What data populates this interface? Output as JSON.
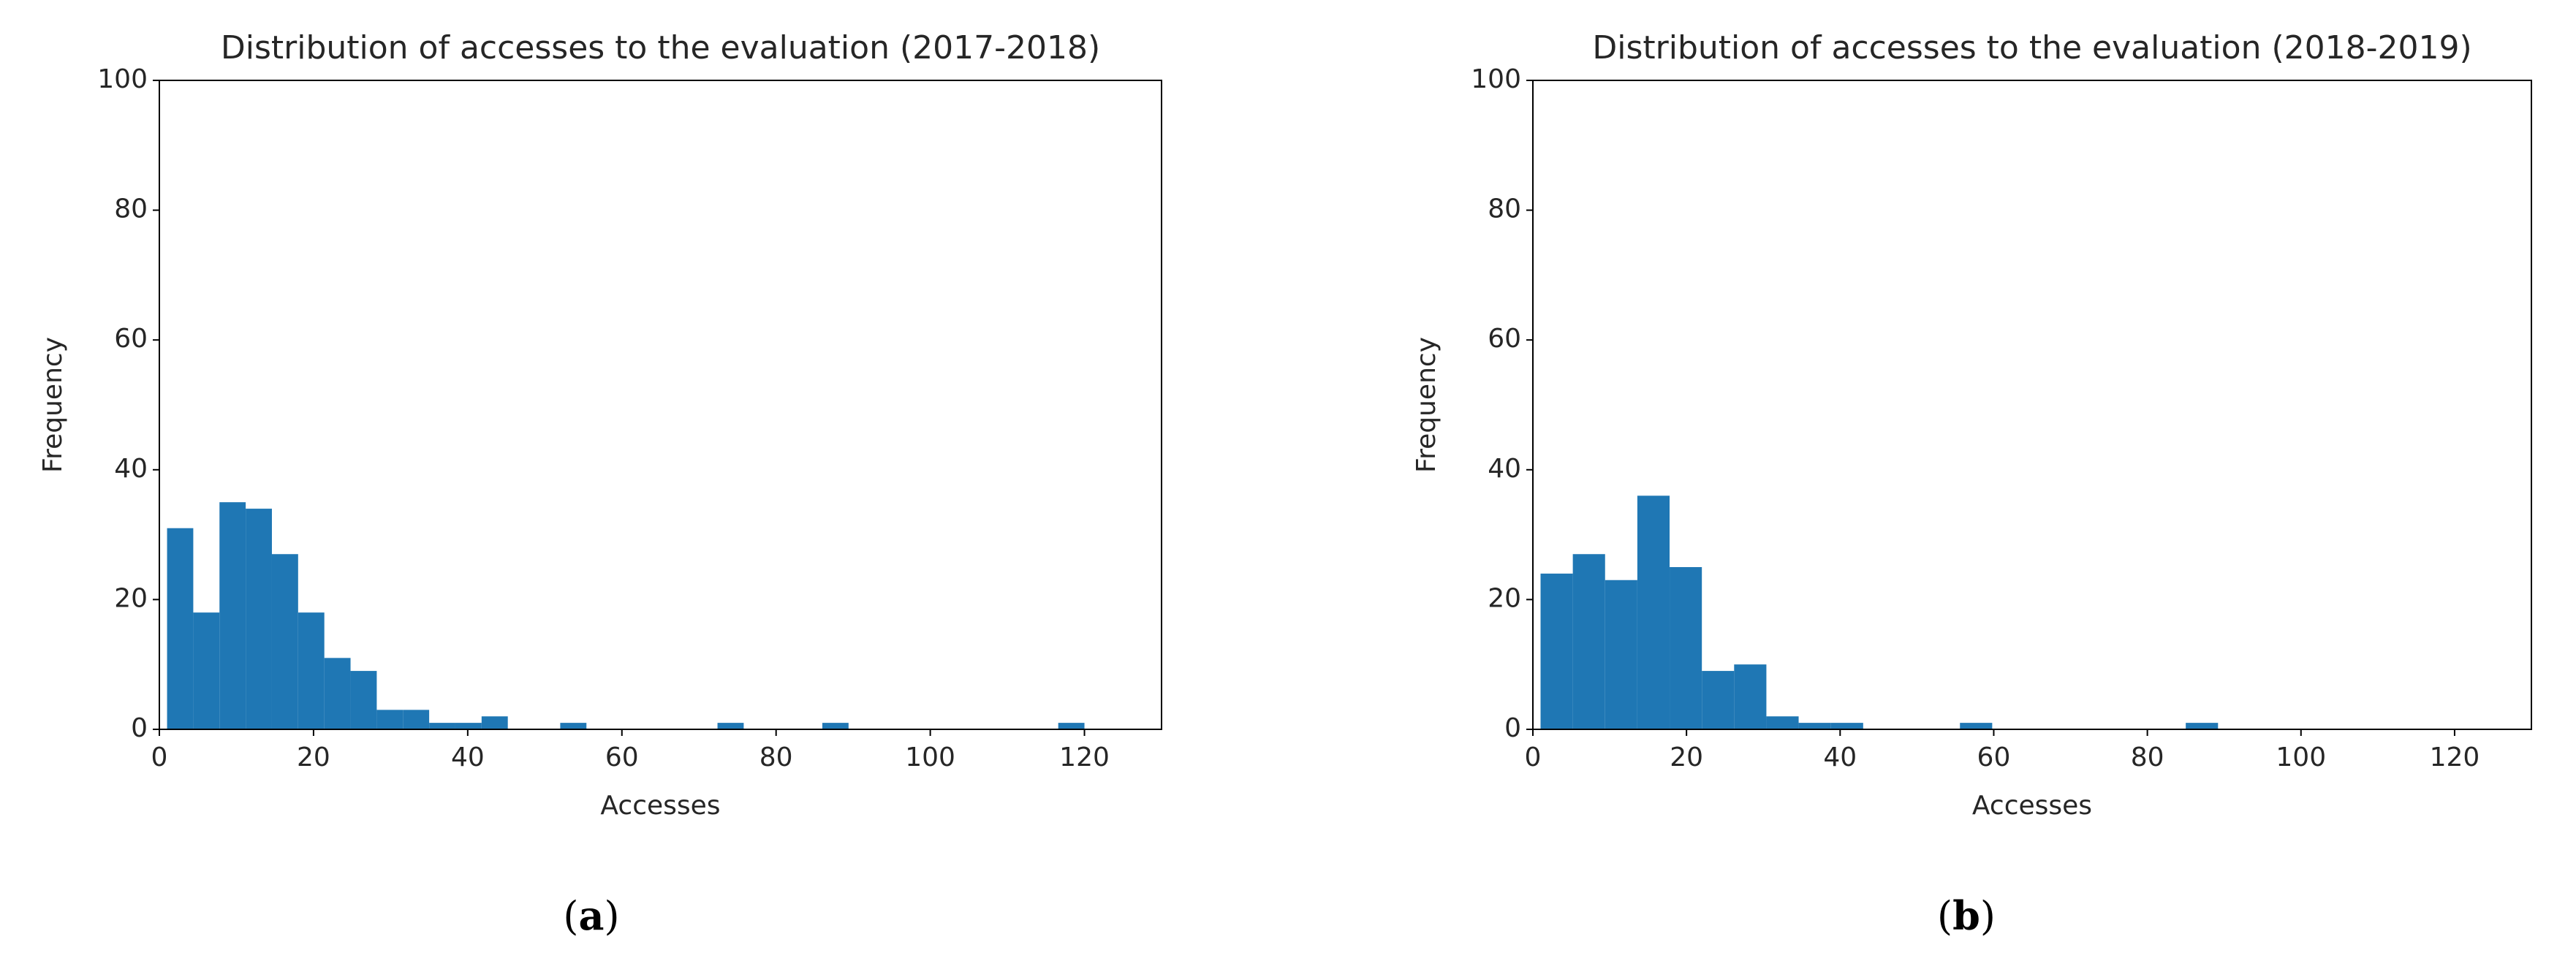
{
  "chart_data": [
    {
      "type": "histogram",
      "title": "Distribution of accesses to the evaluation (2017-2018)",
      "x_label": "Accesses",
      "y_label": "Frequency",
      "caption": [
        "(",
        "a",
        ")"
      ],
      "color": "#1f77b4",
      "bins": [
        1,
        4.4,
        7.8,
        11.2,
        14.6,
        18,
        21.4,
        24.8,
        28.2,
        31.6,
        35,
        38.4,
        41.8,
        45.2,
        48.6,
        52,
        55.4,
        58.8,
        62.2,
        65.6,
        69,
        72.4,
        75.8,
        79.2,
        82.6,
        86,
        89.4,
        92.8,
        96.2,
        99.6,
        103,
        106.4,
        109.8,
        113.2,
        116.6,
        120
      ],
      "values": [
        31,
        18,
        35,
        34,
        27,
        18,
        11,
        9,
        3,
        3,
        1,
        1,
        2,
        0,
        0,
        1,
        0,
        0,
        0,
        0,
        0,
        1,
        0,
        0,
        0,
        1,
        0,
        0,
        0,
        0,
        0,
        0,
        0,
        0,
        1
      ],
      "xlim": [
        0,
        130
      ],
      "xticks": [
        0,
        20,
        40,
        60,
        80,
        100,
        120
      ],
      "ylim": [
        0,
        100
      ],
      "yticks": [
        0,
        20,
        40,
        60,
        80,
        100
      ],
      "grid": false
    },
    {
      "type": "histogram",
      "title": "Distribution of accesses to the evaluation (2018-2019)",
      "x_label": "Accesses",
      "y_label": "Frequency",
      "caption": [
        "(",
        "b",
        ")"
      ],
      "color": "#1f77b4",
      "bins": [
        1,
        5.2,
        9.4,
        13.6,
        17.8,
        22,
        26.2,
        30.4,
        34.6,
        38.8,
        43,
        47.2,
        51.4,
        55.6,
        59.8,
        64,
        68.2,
        72.4,
        76.6,
        80.8,
        85,
        89.2
      ],
      "values": [
        24,
        27,
        23,
        36,
        25,
        9,
        10,
        2,
        1,
        1,
        0,
        0,
        0,
        1,
        0,
        0,
        0,
        0,
        0,
        0,
        1
      ],
      "xlim": [
        0,
        130
      ],
      "xticks": [
        0,
        20,
        40,
        60,
        80,
        100,
        120
      ],
      "ylim": [
        0,
        100
      ],
      "yticks": [
        0,
        20,
        40,
        60,
        80,
        100
      ],
      "grid": false
    }
  ]
}
